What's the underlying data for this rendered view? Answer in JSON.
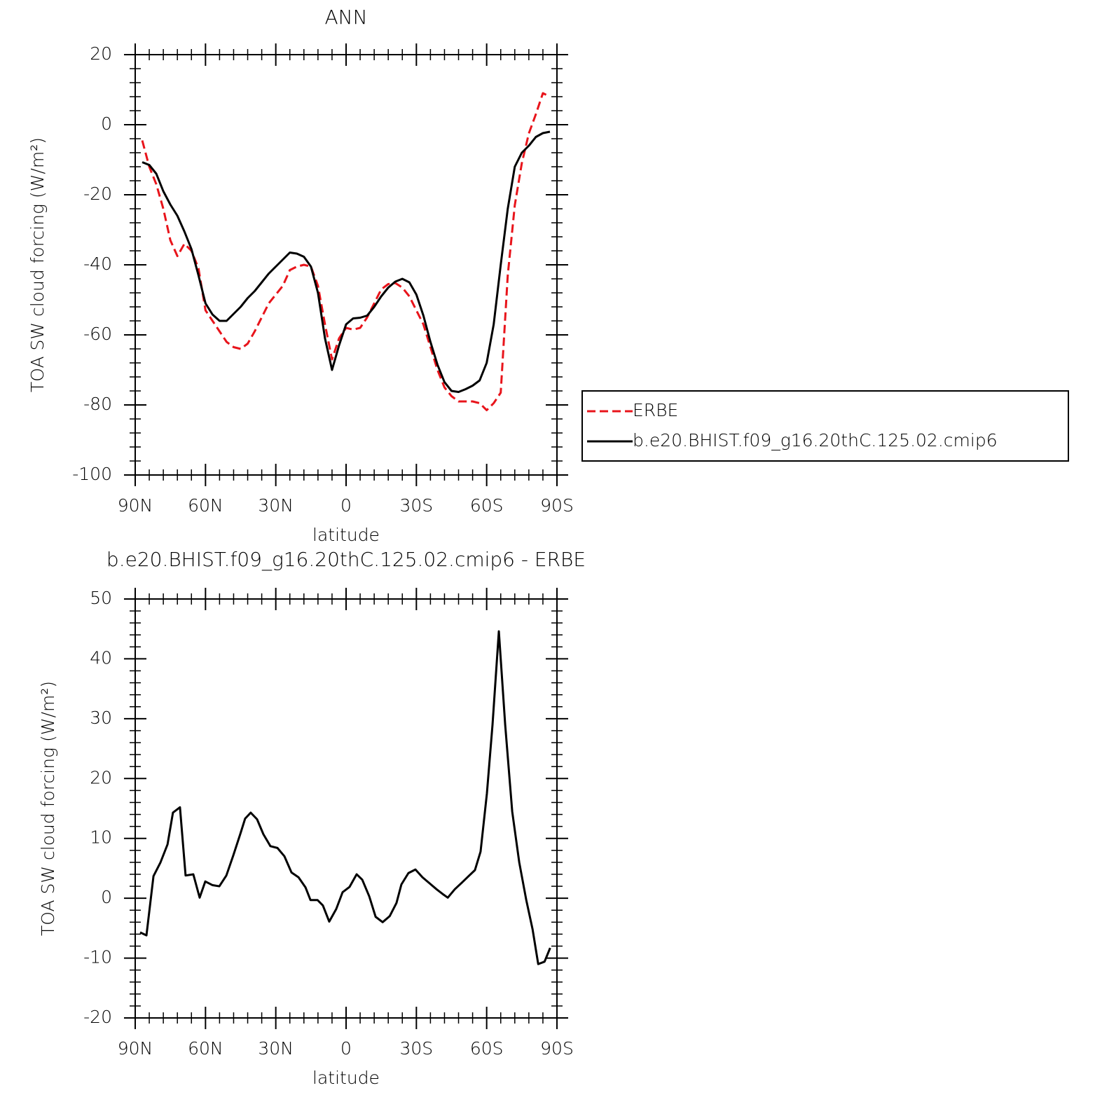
{
  "chart_data": [
    {
      "type": "line",
      "title": "ANN",
      "xlabel": "latitude",
      "ylabel": "TOA SW cloud forcing (W/m²)",
      "xlim": [
        90,
        -90
      ],
      "ylim": [
        -100,
        20
      ],
      "xticks": [
        {
          "value": 90,
          "label": "90N"
        },
        {
          "value": 60,
          "label": "60N"
        },
        {
          "value": 30,
          "label": "30N"
        },
        0,
        {
          "value": -30,
          "label": "30S"
        },
        {
          "value": -60,
          "label": "60S"
        },
        {
          "value": -90,
          "label": "90S"
        }
      ],
      "yticks": [
        -100,
        -80,
        -60,
        -40,
        -20,
        0,
        20
      ],
      "legend": "right",
      "x": [
        87,
        84,
        81,
        78,
        75,
        72,
        69,
        66,
        63,
        60,
        57,
        54,
        51,
        48,
        45,
        42,
        39,
        36,
        33,
        30,
        27,
        24,
        21,
        18,
        15,
        12,
        9,
        6,
        3,
        0,
        -3,
        -6,
        -9,
        -12,
        -15,
        -18,
        -21,
        -24,
        -27,
        -30,
        -33,
        -36,
        -39,
        -42,
        -45,
        -48,
        -51,
        -54,
        -57,
        -60,
        -63,
        -66,
        -69,
        -72,
        -75,
        -78,
        -81,
        -84,
        -87
      ],
      "series": [
        {
          "name": "ERBE",
          "color": "#e8141b",
          "dash": true,
          "values": [
            -4.5,
            -12,
            -17,
            -24,
            -33,
            -37.5,
            -34,
            -36,
            -41,
            -53,
            -56,
            -59,
            -62,
            -63.5,
            -64,
            -62.5,
            -59,
            -55,
            -51,
            -48.5,
            -46,
            -41.5,
            -40.5,
            -40,
            -40.5,
            -46,
            -57,
            -67,
            -61,
            -58,
            -58.5,
            -58,
            -55,
            -51,
            -47,
            -45.5,
            -45.2,
            -46.5,
            -49,
            -53,
            -57,
            -63.5,
            -70,
            -75,
            -77.5,
            -79,
            -79,
            -79,
            -79.5,
            -81.5,
            -79.5,
            -76.5,
            -43,
            -23,
            -11,
            -2.5,
            3,
            9,
            8
          ]
        },
        {
          "name": "b.e20.BHIST.f09_g16.20thC.125.02.cmip6",
          "color": "#000000",
          "dash": false,
          "values": [
            -10.7,
            -11.5,
            -14,
            -19,
            -22.8,
            -26,
            -30.5,
            -35.5,
            -43,
            -51,
            -54.2,
            -56,
            -56,
            -54,
            -52,
            -49.5,
            -47.5,
            -45,
            -42.5,
            -40.5,
            -38.5,
            -36.5,
            -36.8,
            -37.7,
            -40.5,
            -48,
            -61,
            -70,
            -63,
            -57,
            -55.3,
            -55.1,
            -54.5,
            -52,
            -49,
            -46.5,
            -44.8,
            -44,
            -45,
            -48.5,
            -54.5,
            -62,
            -68.5,
            -73.5,
            -76,
            -76.3,
            -75.5,
            -74.5,
            -73,
            -68,
            -57,
            -40,
            -24,
            -12,
            -8,
            -6,
            -3.5,
            -2.4,
            -2
          ]
        }
      ]
    },
    {
      "type": "line",
      "title": "b.e20.BHIST.f09_g16.20thC.125.02.cmip6 - ERBE",
      "xlabel": "latitude",
      "ylabel": "TOA SW cloud forcing (W/m²)",
      "xlim": [
        90,
        -90
      ],
      "ylim": [
        -20,
        50
      ],
      "xticks": [
        {
          "value": 90,
          "label": "90N"
        },
        {
          "value": 60,
          "label": "60N"
        },
        {
          "value": 30,
          "label": "30N"
        },
        0,
        {
          "value": -30,
          "label": "30S"
        },
        {
          "value": -60,
          "label": "60S"
        },
        {
          "value": -90,
          "label": "90S"
        }
      ],
      "yticks": [
        -20,
        -10,
        0,
        10,
        20,
        30,
        40,
        50
      ],
      "x": [
        87.9,
        85.2,
        82.2,
        79.2,
        76.2,
        73.9,
        70.9,
        68.5,
        65.2,
        62.5,
        60.1,
        57.1,
        54.1,
        51.1,
        48.1,
        45.1,
        43.1,
        40.7,
        38.0,
        35.3,
        32.3,
        29.3,
        26.3,
        23.3,
        20.3,
        17.3,
        15.2,
        12.2,
        9.9,
        7.2,
        4.2,
        1.5,
        -1.5,
        -4.5,
        -6.9,
        -9.9,
        -12.6,
        -15.6,
        -18.6,
        -21.5,
        -23.6,
        -26.6,
        -29.6,
        -32.6,
        -35.6,
        -38.6,
        -41.6,
        -43.4,
        -46.4,
        -49.4,
        -52.3,
        -55.0,
        -57.4,
        -60.1,
        -62.5,
        -65.2,
        -67.9,
        -70.9,
        -73.9,
        -76.9,
        -79.6,
        -82.0,
        -84.7,
        -87.1
      ],
      "series": [
        {
          "color": "#000000",
          "dash": false,
          "values": [
            -5.7,
            -6.2,
            3.7,
            6,
            9,
            14.3,
            15.2,
            3.8,
            4,
            0.1,
            2.8,
            2.2,
            2,
            3.8,
            7.2,
            10.8,
            13.3,
            14.3,
            13.2,
            10.7,
            8.7,
            8.4,
            7,
            4.3,
            3.5,
            1.8,
            -0.3,
            -0.3,
            -1.2,
            -3.9,
            -1.8,
            1,
            1.9,
            4,
            3.1,
            0.3,
            -3.1,
            -4,
            -3,
            -0.8,
            2.3,
            4.2,
            4.8,
            3.5,
            2.5,
            1.5,
            0.6,
            0.1,
            1.5,
            2.6,
            3.7,
            4.7,
            7.8,
            17.5,
            29,
            44.6,
            29,
            14.5,
            6,
            -0.3,
            -5.2,
            -11,
            -10.6,
            -8.3
          ]
        }
      ]
    }
  ]
}
